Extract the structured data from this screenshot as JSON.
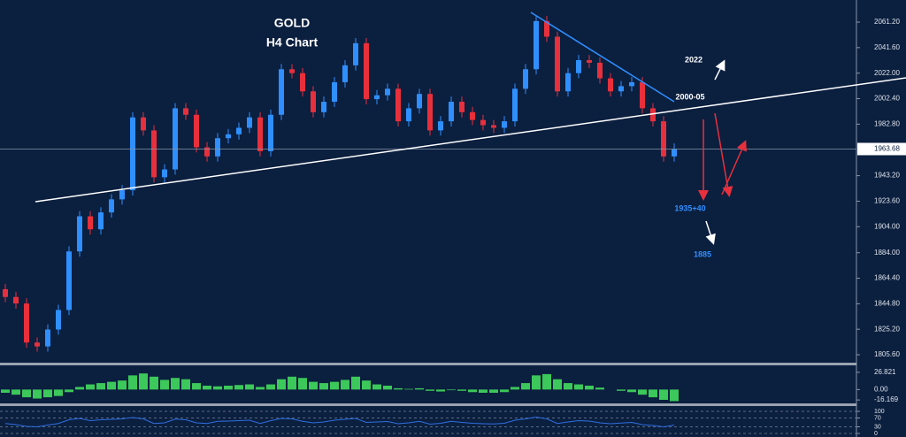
{
  "chart_data": [
    {
      "type": "candlestick",
      "annotations": [
        "GOLD",
        "H4 Chart",
        "2022",
        "2000-05",
        "1935+40",
        "1885"
      ],
      "last_price": 1963.68,
      "up_color": "#2f8fff",
      "down_color": "#e8303c",
      "ylim": [
        1799.5,
        2078.2
      ],
      "yticks": [
        {
          "value": 2061.2,
          "label": "2061.20"
        },
        {
          "value": 2041.6,
          "label": "2041.60"
        },
        {
          "value": 2022,
          "label": "2022.00"
        },
        {
          "value": 2002.4,
          "label": "2002.40"
        },
        {
          "value": 1982.8,
          "label": "1982.80"
        },
        {
          "value": 1943.2,
          "label": "1943.20"
        },
        {
          "value": 1923.6,
          "label": "1923.60"
        },
        {
          "value": 1904,
          "label": "1904.00"
        },
        {
          "value": 1884,
          "label": "1884.00"
        },
        {
          "value": 1864.4,
          "label": "1864.40"
        },
        {
          "value": 1844.8,
          "label": "1844.80"
        },
        {
          "value": 1825.2,
          "label": "1825.20"
        },
        {
          "value": 1805.6,
          "label": "1805.60"
        }
      ],
      "open": [
        1856,
        1850,
        1845,
        1815,
        1812,
        1825,
        1840,
        1885,
        1912,
        1902,
        1915,
        1925,
        1932,
        1988,
        1978,
        1942,
        1948,
        1995,
        1990,
        1965,
        1958,
        1972,
        1975,
        1980,
        1988,
        1962,
        1990,
        2025,
        2022,
        2008,
        1992,
        2000,
        2015,
        2028,
        2045,
        2002,
        2005,
        2010,
        1985,
        1995,
        2006,
        1978,
        1985,
        2000,
        1992,
        1986,
        1982,
        1980,
        1985,
        2010,
        2025,
        2062,
        2050,
        2008,
        2022,
        2032,
        2030,
        2018,
        2008,
        2012,
        2015,
        1995,
        1985,
        1958
      ],
      "high": [
        1860,
        1854,
        1849,
        1819,
        1829,
        1844,
        1889,
        1916,
        1916,
        1919,
        1929,
        1936,
        1992,
        1992,
        1982,
        1952,
        1999,
        1999,
        1994,
        1969,
        1976,
        1979,
        1984,
        1992,
        1992,
        1994,
        2029,
        2029,
        2026,
        2012,
        2004,
        2019,
        2032,
        2049,
        2049,
        2009,
        2014,
        2014,
        1999,
        2010,
        2010,
        1989,
        2004,
        2004,
        1996,
        1990,
        1986,
        1989,
        2014,
        2029,
        2066,
        2066,
        2054,
        2026,
        2036,
        2036,
        2034,
        2022,
        2016,
        2019,
        2019,
        1999,
        1989,
        1968
      ],
      "low": [
        1846,
        1841,
        1811,
        1808,
        1808,
        1821,
        1836,
        1881,
        1898,
        1898,
        1911,
        1921,
        1928,
        1974,
        1938,
        1938,
        1944,
        1986,
        1961,
        1954,
        1954,
        1968,
        1971,
        1976,
        1958,
        1958,
        1986,
        2018,
        2004,
        1988,
        1988,
        1996,
        2011,
        2024,
        1998,
        1998,
        2001,
        1981,
        1981,
        1991,
        1974,
        1974,
        1981,
        1988,
        1982,
        1978,
        1976,
        1976,
        1981,
        2006,
        2021,
        2046,
        2004,
        2004,
        2018,
        2026,
        2014,
        2004,
        2004,
        2008,
        1991,
        1981,
        1954,
        1954
      ],
      "close": [
        1850,
        1845,
        1815,
        1812,
        1825,
        1840,
        1885,
        1912,
        1902,
        1915,
        1925,
        1932,
        1988,
        1978,
        1942,
        1948,
        1995,
        1990,
        1965,
        1958,
        1972,
        1975,
        1980,
        1988,
        1962,
        1990,
        2025,
        2022,
        2008,
        1992,
        2000,
        2015,
        2028,
        2045,
        2002,
        2005,
        2010,
        1985,
        1995,
        2006,
        1978,
        1985,
        2000,
        1992,
        1986,
        1982,
        1980,
        1985,
        2010,
        2025,
        2062,
        2050,
        2008,
        2022,
        2032,
        2030,
        2018,
        2008,
        2012,
        2015,
        1995,
        1985,
        1958,
        1963.68
      ]
    },
    {
      "type": "bar",
      "color": "#3cc85a",
      "ylim": [
        -21.5,
        36.2
      ],
      "yticks": [
        26.821,
        {
          "value": 0,
          "label": "0.00"
        },
        -16.169
      ],
      "values": [
        -5,
        -8,
        -12,
        -14,
        -12,
        -10,
        -4,
        4,
        8,
        10,
        12,
        14,
        22,
        25,
        20,
        15,
        18,
        16,
        10,
        6,
        5,
        6,
        7,
        8,
        4,
        8,
        16,
        20,
        18,
        12,
        10,
        12,
        15,
        20,
        14,
        8,
        6,
        2,
        1,
        2,
        -2,
        -3,
        -1,
        -2,
        -4,
        -5,
        -5,
        -4,
        4,
        10,
        22,
        24,
        16,
        10,
        8,
        6,
        3,
        0,
        -2,
        -4,
        -8,
        -12,
        -16,
        -18
      ]
    },
    {
      "type": "line",
      "color": "#2f6fe0",
      "ylim": [
        -16,
        120
      ],
      "yticks": [
        100,
        70,
        30,
        0
      ],
      "values": [
        45,
        40,
        32,
        30,
        38,
        45,
        62,
        68,
        58,
        62,
        64,
        66,
        72,
        66,
        45,
        48,
        65,
        62,
        48,
        45,
        55,
        56,
        58,
        60,
        45,
        58,
        68,
        66,
        55,
        48,
        52,
        60,
        64,
        68,
        50,
        52,
        54,
        44,
        48,
        55,
        42,
        46,
        55,
        50,
        46,
        44,
        43,
        46,
        60,
        66,
        74,
        66,
        45,
        52,
        58,
        56,
        48,
        44,
        47,
        50,
        40,
        36,
        30,
        38
      ]
    }
  ]
}
